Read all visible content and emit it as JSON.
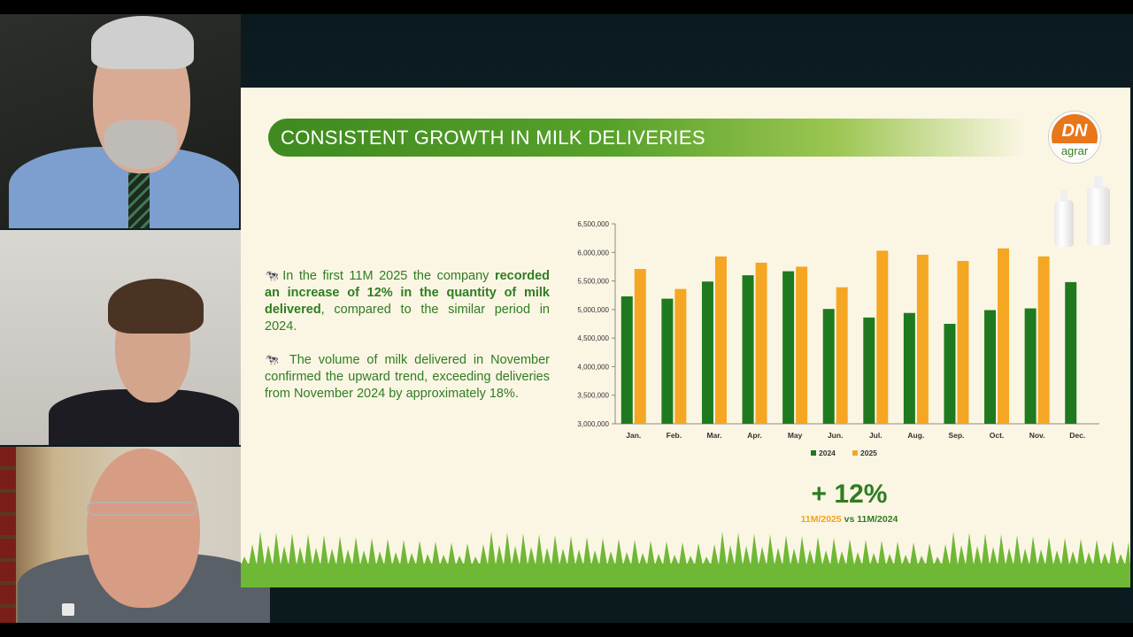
{
  "slide": {
    "title": "CONSISTENT GROWTH IN MILK DELIVERIES",
    "logo": {
      "main": "DN",
      "sub": "agrar"
    },
    "paragraph_1": {
      "prefix": "In the first 11M 2025 the company ",
      "bold": "recorded an increase of 12% in the quantity of milk delivered",
      "suffix": ", compared to the similar period in 2024."
    },
    "paragraph_2": "The volume of milk delivered in November confirmed the upward trend, exceeding deliveries from November 2024 by approximately 18%.",
    "highlight": {
      "value": "+ 12%",
      "sub_a": "11M/2025",
      "sub_mid": " vs ",
      "sub_b": "11M/2024"
    },
    "colors": {
      "green": "#2f7d22",
      "bar_2024": "#1f7a1f",
      "bar_2025": "#f5a623",
      "background": "#fbf6e4"
    }
  },
  "chart_data": {
    "type": "bar",
    "categories": [
      "Jan.",
      "Feb.",
      "Mar.",
      "Apr.",
      "May",
      "Jun.",
      "Jul.",
      "Aug.",
      "Sep.",
      "Oct.",
      "Nov.",
      "Dec."
    ],
    "series": [
      {
        "name": "2024",
        "values": [
          5230000,
          5190000,
          5490000,
          5600000,
          5670000,
          5010000,
          4860000,
          4940000,
          4750000,
          4990000,
          5020000,
          5480000
        ]
      },
      {
        "name": "2025",
        "values": [
          5710000,
          5360000,
          5930000,
          5820000,
          5750000,
          5390000,
          6030000,
          5960000,
          5850000,
          6070000,
          5930000,
          null
        ]
      }
    ],
    "yticks": [
      "3,000,000",
      "3,500,000",
      "4,000,000",
      "4,500,000",
      "5,000,000",
      "5,500,000",
      "6,000,000",
      "6,500,000"
    ],
    "ylim": [
      3000000,
      6500000
    ],
    "legend": "bottom",
    "grid": false
  }
}
